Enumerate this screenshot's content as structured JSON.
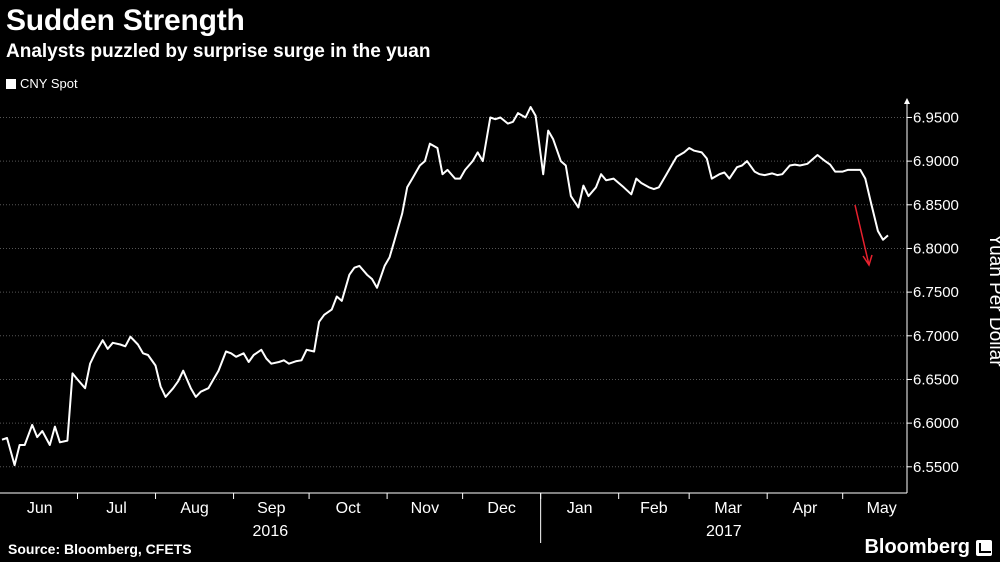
{
  "header": {
    "title": "Sudden Strength",
    "subtitle": "Analysts puzzled by surprise surge in the yuan"
  },
  "footer": {
    "source": "Source: Bloomberg, CFETS",
    "brand": "Bloomberg"
  },
  "colors": {
    "background": "#000000",
    "line": "#ffffff",
    "grid": "#555555",
    "arrow": "#e8212e"
  },
  "chart_data": {
    "type": "line",
    "title": "Sudden Strength",
    "subtitle": "Analysts puzzled by surprise surge in the yuan",
    "ylabel": "Yuan Per Dollar",
    "xlabel": "",
    "ylim": [
      6.52,
      6.97
    ],
    "y_axis_side": "right",
    "yticks": [
      "6.5500",
      "6.6000",
      "6.6500",
      "6.7000",
      "6.7500",
      "6.8000",
      "6.8500",
      "6.9000",
      "6.9500"
    ],
    "ytick_values": [
      6.55,
      6.6,
      6.65,
      6.7,
      6.75,
      6.8,
      6.85,
      6.9,
      6.95
    ],
    "month_labels": [
      "Jun",
      "Jul",
      "Aug",
      "Sep",
      "Oct",
      "Nov",
      "Dec",
      "Jan",
      "Feb",
      "Mar",
      "Apr",
      "May"
    ],
    "year_labels": [
      "2016",
      "2017"
    ],
    "grid": "horizontal",
    "legend": {
      "position": "top-left",
      "entries": [
        "CNY Spot"
      ]
    },
    "annotation": "red downward arrow near the late-May drop",
    "series": [
      {
        "name": "CNY Spot",
        "points": [
          [
            "2016-06-01",
            6.581
          ],
          [
            "2016-06-03",
            6.583
          ],
          [
            "2016-06-06",
            6.552
          ],
          [
            "2016-06-08",
            6.575
          ],
          [
            "2016-06-10",
            6.575
          ],
          [
            "2016-06-13",
            6.598
          ],
          [
            "2016-06-15",
            6.584
          ],
          [
            "2016-06-17",
            6.591
          ],
          [
            "2016-06-20",
            6.575
          ],
          [
            "2016-06-22",
            6.596
          ],
          [
            "2016-06-24",
            6.578
          ],
          [
            "2016-06-27",
            6.58
          ],
          [
            "2016-06-29",
            6.657
          ],
          [
            "2016-07-01",
            6.65
          ],
          [
            "2016-07-04",
            6.64
          ],
          [
            "2016-07-06",
            6.668
          ],
          [
            "2016-07-08",
            6.68
          ],
          [
            "2016-07-11",
            6.695
          ],
          [
            "2016-07-13",
            6.685
          ],
          [
            "2016-07-15",
            6.692
          ],
          [
            "2016-07-18",
            6.69
          ],
          [
            "2016-07-20",
            6.688
          ],
          [
            "2016-07-22",
            6.699
          ],
          [
            "2016-07-25",
            6.69
          ],
          [
            "2016-07-27",
            6.68
          ],
          [
            "2016-07-29",
            6.678
          ],
          [
            "2016-08-01",
            6.666
          ],
          [
            "2016-08-03",
            6.642
          ],
          [
            "2016-08-05",
            6.63
          ],
          [
            "2016-08-08",
            6.64
          ],
          [
            "2016-08-10",
            6.648
          ],
          [
            "2016-08-12",
            6.66
          ],
          [
            "2016-08-15",
            6.64
          ],
          [
            "2016-08-17",
            6.63
          ],
          [
            "2016-08-19",
            6.636
          ],
          [
            "2016-08-22",
            6.64
          ],
          [
            "2016-08-24",
            6.65
          ],
          [
            "2016-08-26",
            6.66
          ],
          [
            "2016-08-29",
            6.682
          ],
          [
            "2016-08-31",
            6.68
          ],
          [
            "2016-09-02",
            6.676
          ],
          [
            "2016-09-05",
            6.68
          ],
          [
            "2016-09-07",
            6.67
          ],
          [
            "2016-09-09",
            6.678
          ],
          [
            "2016-09-12",
            6.684
          ],
          [
            "2016-09-14",
            6.674
          ],
          [
            "2016-09-16",
            6.668
          ],
          [
            "2016-09-19",
            6.67
          ],
          [
            "2016-09-21",
            6.672
          ],
          [
            "2016-09-23",
            6.668
          ],
          [
            "2016-09-26",
            6.671
          ],
          [
            "2016-09-28",
            6.672
          ],
          [
            "2016-09-30",
            6.684
          ],
          [
            "2016-10-03",
            6.682
          ],
          [
            "2016-10-05",
            6.716
          ],
          [
            "2016-10-07",
            6.724
          ],
          [
            "2016-10-10",
            6.73
          ],
          [
            "2016-10-12",
            6.745
          ],
          [
            "2016-10-14",
            6.74
          ],
          [
            "2016-10-17",
            6.77
          ],
          [
            "2016-10-19",
            6.778
          ],
          [
            "2016-10-21",
            6.78
          ],
          [
            "2016-10-24",
            6.77
          ],
          [
            "2016-10-26",
            6.765
          ],
          [
            "2016-10-28",
            6.755
          ],
          [
            "2016-10-31",
            6.78
          ],
          [
            "2016-11-02",
            6.79
          ],
          [
            "2016-11-04",
            6.81
          ],
          [
            "2016-11-07",
            6.84
          ],
          [
            "2016-11-09",
            6.87
          ],
          [
            "2016-11-11",
            6.88
          ],
          [
            "2016-11-14",
            6.895
          ],
          [
            "2016-11-16",
            6.9
          ],
          [
            "2016-11-18",
            6.92
          ],
          [
            "2016-11-21",
            6.915
          ],
          [
            "2016-11-23",
            6.885
          ],
          [
            "2016-11-25",
            6.89
          ],
          [
            "2016-11-28",
            6.88
          ],
          [
            "2016-11-30",
            6.88
          ],
          [
            "2016-12-02",
            6.89
          ],
          [
            "2016-12-05",
            6.9
          ],
          [
            "2016-12-07",
            6.91
          ],
          [
            "2016-12-09",
            6.9
          ],
          [
            "2016-12-12",
            6.95
          ],
          [
            "2016-12-14",
            6.948
          ],
          [
            "2016-12-16",
            6.95
          ],
          [
            "2016-12-19",
            6.943
          ],
          [
            "2016-12-21",
            6.945
          ],
          [
            "2016-12-23",
            6.955
          ],
          [
            "2016-12-26",
            6.95
          ],
          [
            "2016-12-28",
            6.962
          ],
          [
            "2016-12-30",
            6.952
          ],
          [
            "2017-01-02",
            6.885
          ],
          [
            "2017-01-04",
            6.935
          ],
          [
            "2017-01-06",
            6.925
          ],
          [
            "2017-01-09",
            6.9
          ],
          [
            "2017-01-11",
            6.895
          ],
          [
            "2017-01-13",
            6.86
          ],
          [
            "2017-01-16",
            6.847
          ],
          [
            "2017-01-18",
            6.872
          ],
          [
            "2017-01-20",
            6.86
          ],
          [
            "2017-01-23",
            6.87
          ],
          [
            "2017-01-25",
            6.885
          ],
          [
            "2017-01-27",
            6.878
          ],
          [
            "2017-01-30",
            6.88
          ],
          [
            "2017-02-01",
            6.875
          ],
          [
            "2017-02-03",
            6.87
          ],
          [
            "2017-02-06",
            6.862
          ],
          [
            "2017-02-08",
            6.88
          ],
          [
            "2017-02-10",
            6.875
          ],
          [
            "2017-02-13",
            6.87
          ],
          [
            "2017-02-15",
            6.868
          ],
          [
            "2017-02-17",
            6.87
          ],
          [
            "2017-02-20",
            6.885
          ],
          [
            "2017-02-22",
            6.895
          ],
          [
            "2017-02-24",
            6.905
          ],
          [
            "2017-02-27",
            6.91
          ],
          [
            "2017-03-01",
            6.915
          ],
          [
            "2017-03-03",
            6.912
          ],
          [
            "2017-03-06",
            6.91
          ],
          [
            "2017-03-08",
            6.903
          ],
          [
            "2017-03-10",
            6.88
          ],
          [
            "2017-03-13",
            6.885
          ],
          [
            "2017-03-15",
            6.887
          ],
          [
            "2017-03-17",
            6.88
          ],
          [
            "2017-03-20",
            6.893
          ],
          [
            "2017-03-22",
            6.895
          ],
          [
            "2017-03-24",
            6.9
          ],
          [
            "2017-03-27",
            6.888
          ],
          [
            "2017-03-29",
            6.885
          ],
          [
            "2017-03-31",
            6.884
          ],
          [
            "2017-04-03",
            6.886
          ],
          [
            "2017-04-05",
            6.884
          ],
          [
            "2017-04-07",
            6.885
          ],
          [
            "2017-04-10",
            6.895
          ],
          [
            "2017-04-12",
            6.896
          ],
          [
            "2017-04-14",
            6.895
          ],
          [
            "2017-04-17",
            6.897
          ],
          [
            "2017-04-19",
            6.902
          ],
          [
            "2017-04-21",
            6.907
          ],
          [
            "2017-04-24",
            6.9
          ],
          [
            "2017-04-26",
            6.896
          ],
          [
            "2017-04-28",
            6.888
          ],
          [
            "2017-05-01",
            6.888
          ],
          [
            "2017-05-03",
            6.89
          ],
          [
            "2017-05-05",
            6.89
          ],
          [
            "2017-05-08",
            6.89
          ],
          [
            "2017-05-10",
            6.88
          ],
          [
            "2017-05-12",
            6.855
          ],
          [
            "2017-05-15",
            6.82
          ],
          [
            "2017-05-17",
            6.81
          ],
          [
            "2017-05-19",
            6.815
          ]
        ]
      }
    ]
  }
}
